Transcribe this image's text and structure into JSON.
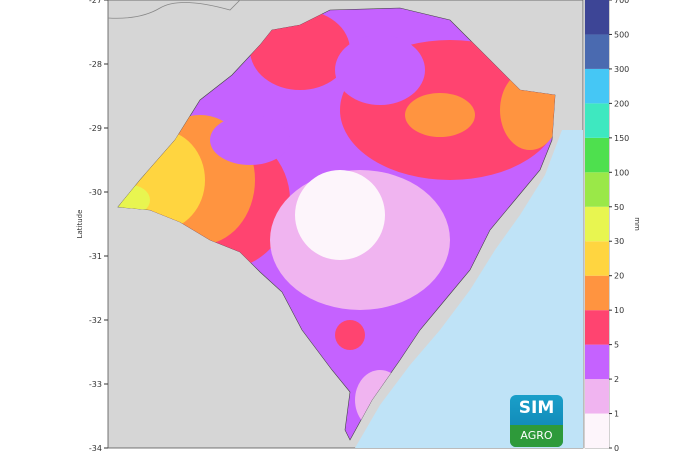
{
  "map": {
    "ylabel": "Latitude",
    "yticks": [
      "-27",
      "-28",
      "-29",
      "-30",
      "-31",
      "-32",
      "-33",
      "-34"
    ],
    "land_color": "#d6d6d6",
    "ocean_color": "#bfe3f7"
  },
  "colorbar": {
    "label": "mm",
    "ticks": [
      "0",
      "1",
      "2",
      "5",
      "10",
      "20",
      "30",
      "50",
      "100",
      "150",
      "200",
      "300",
      "500",
      "700"
    ],
    "colors": [
      "#fdf5fb",
      "#f0b4f0",
      "#c562ff",
      "#ff4470",
      "#ff9440",
      "#ffd540",
      "#e8f550",
      "#9ae848",
      "#4ee04e",
      "#3ee8c0",
      "#45c7f5",
      "#4a6ab0",
      "#3d4596"
    ]
  },
  "logo": {
    "line1": "SIM",
    "line2": "AGRO"
  }
}
